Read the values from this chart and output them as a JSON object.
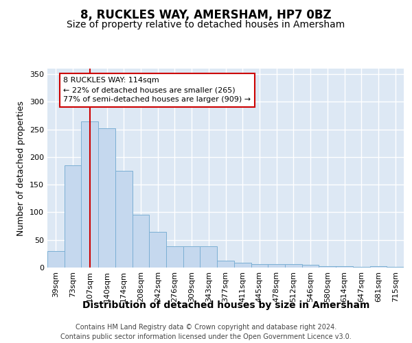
{
  "title": "8, RUCKLES WAY, AMERSHAM, HP7 0BZ",
  "subtitle": "Size of property relative to detached houses in Amersham",
  "xlabel": "Distribution of detached houses by size in Amersham",
  "ylabel": "Number of detached properties",
  "bar_labels": [
    "39sqm",
    "73sqm",
    "107sqm",
    "140sqm",
    "174sqm",
    "208sqm",
    "242sqm",
    "276sqm",
    "309sqm",
    "343sqm",
    "377sqm",
    "411sqm",
    "445sqm",
    "478sqm",
    "512sqm",
    "546sqm",
    "580sqm",
    "614sqm",
    "647sqm",
    "681sqm",
    "715sqm"
  ],
  "bar_values": [
    30,
    185,
    265,
    252,
    175,
    95,
    65,
    38,
    38,
    38,
    13,
    9,
    6,
    6,
    6,
    5,
    2,
    3,
    1,
    2,
    1
  ],
  "bar_color": "#c5d8ee",
  "bar_edge_color": "#7bafd4",
  "vline_x": 2,
  "vline_color": "#cc0000",
  "annotation_text": "8 RUCKLES WAY: 114sqm\n← 22% of detached houses are smaller (265)\n77% of semi-detached houses are larger (909) →",
  "annotation_box_color": "#ffffff",
  "annotation_box_edge": "#cc0000",
  "ylim": [
    0,
    360
  ],
  "yticks": [
    0,
    50,
    100,
    150,
    200,
    250,
    300,
    350
  ],
  "footer": "Contains HM Land Registry data © Crown copyright and database right 2024.\nContains public sector information licensed under the Open Government Licence v3.0.",
  "bg_color": "#dde8f4",
  "grid_color": "#ffffff",
  "title_fontsize": 12,
  "subtitle_fontsize": 10,
  "xlabel_fontsize": 10,
  "ylabel_fontsize": 9,
  "tick_fontsize": 8,
  "annotation_fontsize": 8,
  "footer_fontsize": 7
}
